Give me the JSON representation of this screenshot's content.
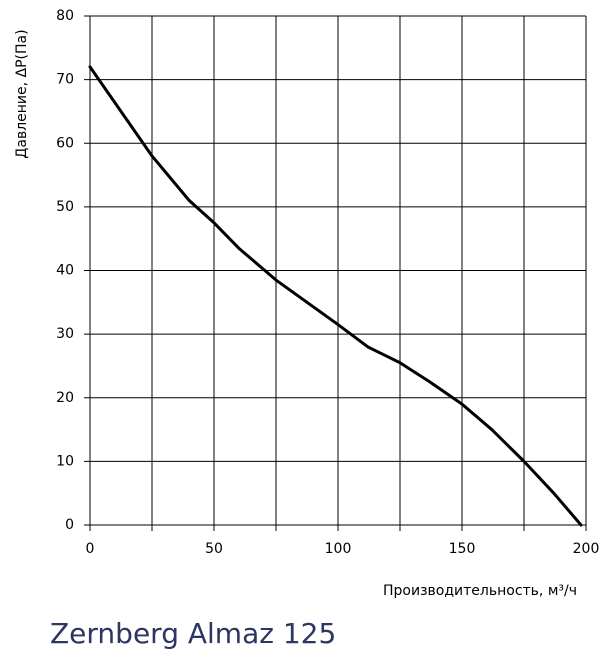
{
  "chart_data": {
    "type": "line",
    "title": "Zernberg Almaz 125",
    "x_label": "Производительность, м³/ч",
    "y_label": "Давление, ΔP(Па)",
    "series": [
      {
        "color": "#000000",
        "x": [
          0,
          25,
          40,
          50,
          60,
          75,
          100,
          112,
          125,
          137,
          150,
          162,
          175,
          187,
          198
        ],
        "values": [
          72,
          58,
          51,
          47.5,
          43.5,
          38.5,
          31.5,
          28,
          25.5,
          22.5,
          19,
          15,
          10,
          5,
          0
        ]
      }
    ],
    "xlim": [
      0,
      200
    ],
    "ylim": [
      0,
      80
    ],
    "xticks": [
      0,
      50,
      100,
      150,
      200
    ],
    "x_minor_ticks": [
      25,
      75,
      125,
      175
    ],
    "yticks": [
      0,
      10,
      20,
      30,
      40,
      50,
      60,
      70,
      80
    ],
    "grid": true
  }
}
